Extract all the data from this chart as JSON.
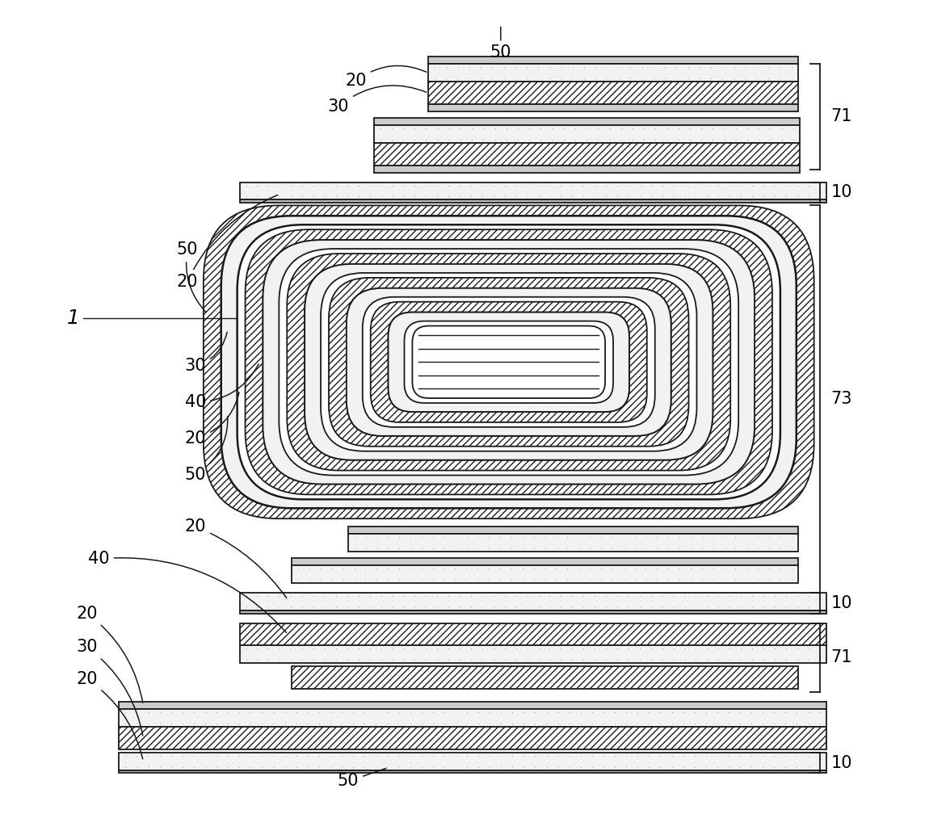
{
  "bg_color": "#ffffff",
  "lc": "#1a1a1a",
  "lw": 1.3,
  "hatch_color": "#444444",
  "dot_color": "#aaaaaa",
  "dot_fill": "#f5f5f5",
  "hatch_fill": "#e8e8e8",
  "metal_fill": "#d8d8d8",
  "figw": 11.76,
  "figh": 10.08,
  "dpi": 100
}
